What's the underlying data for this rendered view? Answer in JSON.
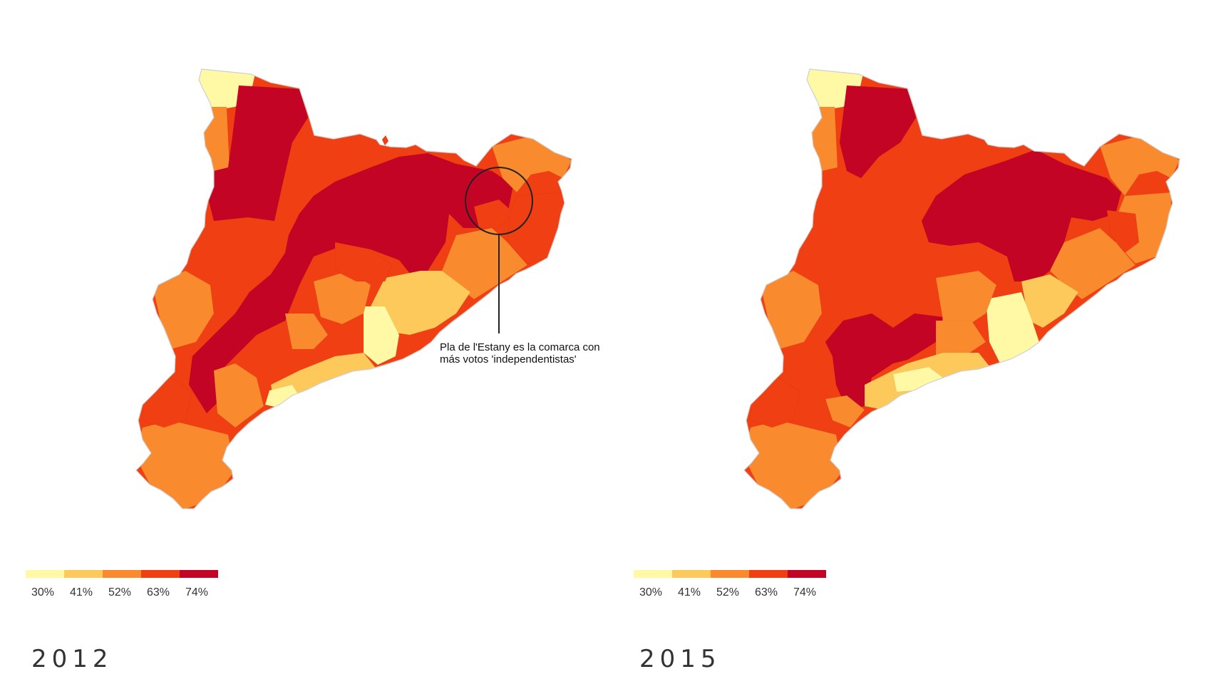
{
  "colors": {
    "c30": "#fff9a6",
    "c41": "#fcc95a",
    "c52": "#f98a2e",
    "c63": "#f03f12",
    "c74": "#c40425",
    "border": "#d8d8d8",
    "annotation_line": "#222222"
  },
  "legend": {
    "labels": [
      "30%",
      "41%",
      "52%",
      "63%",
      "74%"
    ]
  },
  "maps": [
    {
      "year": "2012",
      "annotation": {
        "line1": "Pla de l'Estany es la comarca con",
        "line2": "más votos 'independentistas'"
      }
    },
    {
      "year": "2015"
    }
  ]
}
